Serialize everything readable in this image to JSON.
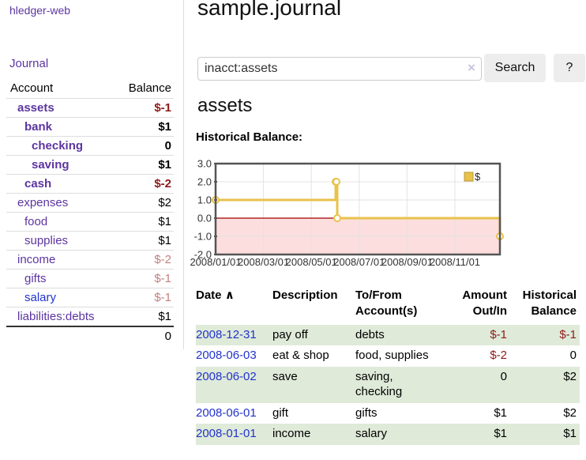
{
  "brand": "hledger-web",
  "sidebar": {
    "journal_link": "Journal",
    "accounts": {
      "headers": {
        "account": "Account",
        "balance": "Balance"
      },
      "rows": [
        {
          "name": "assets",
          "balance": "$-1",
          "indent": 1,
          "bold": true,
          "neg": "strong",
          "link_color": "purple"
        },
        {
          "name": "bank",
          "balance": "$1",
          "indent": 2,
          "bold": true,
          "neg": "none",
          "link_color": "purple"
        },
        {
          "name": "checking",
          "balance": "0",
          "indent": 3,
          "bold": true,
          "neg": "none",
          "link_color": "purple"
        },
        {
          "name": "saving",
          "balance": "$1",
          "indent": 3,
          "bold": true,
          "neg": "none",
          "link_color": "purple"
        },
        {
          "name": "cash",
          "balance": "$-2",
          "indent": 2,
          "bold": true,
          "neg": "strong",
          "link_color": "purple"
        },
        {
          "name": "expenses",
          "balance": "$2",
          "indent": 1,
          "bold": false,
          "neg": "none",
          "link_color": "purple"
        },
        {
          "name": "food",
          "balance": "$1",
          "indent": 2,
          "bold": false,
          "neg": "none",
          "link_color": "purple"
        },
        {
          "name": "supplies",
          "balance": "$1",
          "indent": 2,
          "bold": false,
          "neg": "none",
          "link_color": "purple"
        },
        {
          "name": "income",
          "balance": "$-2",
          "indent": 1,
          "bold": false,
          "neg": "light",
          "link_color": "purple"
        },
        {
          "name": "gifts",
          "balance": "$-1",
          "indent": 2,
          "bold": false,
          "neg": "light",
          "link_color": "purple"
        },
        {
          "name": "salary",
          "balance": "$-1",
          "indent": 2,
          "bold": false,
          "neg": "light",
          "link_color": "blue"
        },
        {
          "name": "liabilities:debts",
          "balance": "$1",
          "indent": 1,
          "bold": false,
          "neg": "none",
          "link_color": "purple"
        }
      ],
      "total": "0"
    }
  },
  "header": {
    "title": "sample.journal"
  },
  "search": {
    "value": "inacct:assets",
    "clear_icon": "×",
    "search_label": "Search",
    "help_label": "?"
  },
  "account_page": {
    "heading": "assets",
    "chart_title": "Historical Balance:"
  },
  "chart_data": {
    "type": "line",
    "step": true,
    "title": "Historical Balance",
    "series": [
      {
        "name": "$",
        "color": "#e9c24b",
        "points": [
          {
            "x": "2008-01-01",
            "y": 1
          },
          {
            "x": "2008-06-01",
            "y": 2
          },
          {
            "x": "2008-06-02",
            "y": 2
          },
          {
            "x": "2008-06-03",
            "y": 0
          },
          {
            "x": "2008-12-31",
            "y": -1
          }
        ]
      }
    ],
    "ylim": [
      -2.0,
      3.0
    ],
    "yticks": [
      "3.0",
      "2.0",
      "1.0",
      "0.0",
      "-1.0",
      "-2.0"
    ],
    "xticks": [
      "2008/01/01",
      "2008/03/01",
      "2008/05/01",
      "2008/07/01",
      "2008/09/01",
      "2008/11/01"
    ],
    "x_start": "2008-01-01",
    "legend": {
      "label": "$",
      "position": "top-right"
    },
    "grid": true,
    "negative_fill": "#fcdede",
    "zero_line_color": "#a00000"
  },
  "register": {
    "headers": {
      "date": "Date",
      "sort_icon": "∧",
      "description": "Description",
      "accounts": "To/From Account(s)",
      "amount": "Amount Out/In",
      "balance": "Historical Balance"
    },
    "rows": [
      {
        "date": "2008-12-31",
        "description": "pay off",
        "accounts": "debts",
        "amount": "$-1",
        "balance": "$-1",
        "amount_neg": true,
        "balance_neg": true
      },
      {
        "date": "2008-06-03",
        "description": "eat & shop",
        "accounts": "food, supplies",
        "amount": "$-2",
        "balance": "0",
        "amount_neg": true,
        "balance_neg": false
      },
      {
        "date": "2008-06-02",
        "description": "save",
        "accounts": "saving, checking",
        "amount": "0",
        "balance": "$2",
        "amount_neg": false,
        "balance_neg": false
      },
      {
        "date": "2008-06-01",
        "description": "gift",
        "accounts": "gifts",
        "amount": "$1",
        "balance": "$2",
        "amount_neg": false,
        "balance_neg": false
      },
      {
        "date": "2008-01-01",
        "description": "income",
        "accounts": "salary",
        "amount": "$1",
        "balance": "$1",
        "amount_neg": false,
        "balance_neg": false
      }
    ]
  },
  "colors": {
    "accent_purple": "#5c35a0",
    "link_blue": "#2233cc",
    "negative_strong": "#8e1b1b",
    "negative_light": "#c28080",
    "row_stripe_green": "#dfead9",
    "series_gold": "#e9c24b",
    "negative_region_pink": "#fcdede",
    "zero_line_red": "#a00000"
  }
}
